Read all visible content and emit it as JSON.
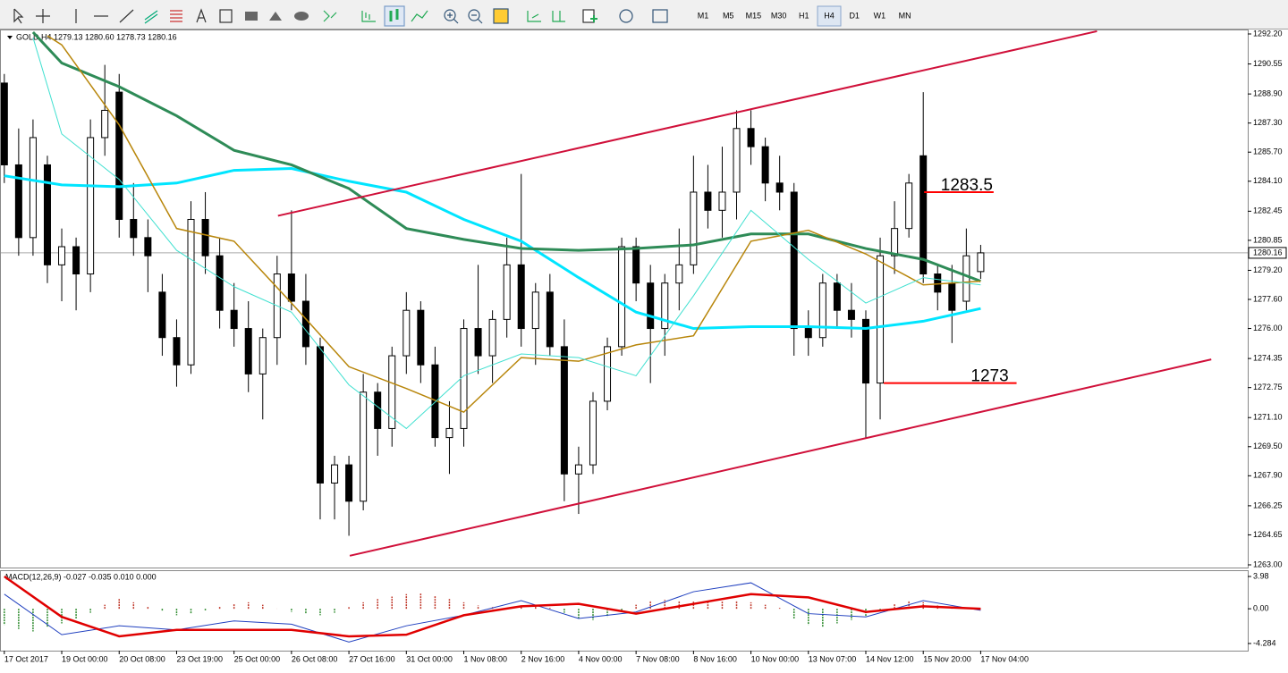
{
  "toolbar": {
    "timeframes": [
      "M1",
      "M5",
      "M15",
      "M30",
      "H1",
      "H4",
      "D1",
      "W1",
      "MN"
    ],
    "active": "H4"
  },
  "chart_data": [
    {
      "type": "candlestick",
      "title": "GOLD,H4  1279.13 1280.60 1278.73 1280.16",
      "categories": [
        "17 Oct 2017",
        null,
        null,
        null,
        "19 Oct 00:00",
        null,
        null,
        null,
        "20 Oct 08:00",
        null,
        null,
        null,
        "23 Oct 19:00",
        null,
        null,
        null,
        "25 Oct 00:00",
        null,
        null,
        null,
        "26 Oct 08:00",
        null,
        null,
        null,
        "27 Oct 16:00",
        null,
        null,
        null,
        "31 Oct 00:00",
        null,
        null,
        null,
        "1 Nov 08:00",
        null,
        null,
        null,
        "2 Nov 16:00",
        null,
        null,
        null,
        "4 Nov 00:00",
        null,
        null,
        null,
        "7 Nov 08:00",
        null,
        null,
        null,
        "8 Nov 16:00",
        null,
        null,
        null,
        "10 Nov 00:00",
        null,
        null,
        null,
        "13 Nov 07:00",
        null,
        null,
        null,
        "14 Nov 12:00",
        null,
        null,
        null,
        "15 Nov 20:00",
        null,
        null,
        null,
        "17 Nov 04:00"
      ],
      "open": [
        1289.5,
        1285,
        1281,
        1285,
        1279.5,
        1280.5,
        1279,
        1286.5,
        1289,
        1282,
        1281,
        1278,
        1275.5,
        1274,
        1282,
        1280,
        1277,
        1276,
        1273.5,
        1275.5,
        1279,
        1277.5,
        1275,
        1267.5,
        1268.5,
        1266.5,
        1272.5,
        1270.5,
        1274.5,
        1277,
        1274,
        1270,
        1270.5,
        1276,
        1274.5,
        1276.5,
        1279.5,
        1276,
        1278,
        1275,
        1268,
        1268.5,
        1272,
        1275,
        1280.5,
        1278.5,
        1276,
        1278.5,
        1279.5,
        1283.5,
        1282.5,
        1283.5,
        1287,
        1286,
        1284,
        1283.5,
        1276,
        1275.5,
        1278.5,
        1277,
        1276.5,
        1273,
        1280,
        1281.5,
        1285.5,
        1279,
        1278.5,
        1277.5,
        1279.13
      ],
      "high": [
        1290,
        1287,
        1287.5,
        1285.5,
        1281.5,
        1281,
        1287.5,
        1290.5,
        1290,
        1284,
        1282,
        1279,
        1276.5,
        1283,
        1283.5,
        1281,
        1278.5,
        1277.5,
        1276,
        1280,
        1282.5,
        1279,
        1275.5,
        1269,
        1269,
        1273.5,
        1273,
        1275,
        1278,
        1277.5,
        1275,
        1272,
        1276.5,
        1279.5,
        1277,
        1281,
        1284.5,
        1278.5,
        1279,
        1276.5,
        1269.5,
        1272.5,
        1275.5,
        1281,
        1281,
        1279.5,
        1279,
        1281.5,
        1285.5,
        1285,
        1286,
        1288,
        1288,
        1286.5,
        1285.5,
        1284,
        1277,
        1279,
        1279,
        1278.5,
        1277,
        1281,
        1283,
        1284.5,
        1289,
        1279.5,
        1279.5,
        1281.5,
        1280.6
      ],
      "low": [
        1284,
        1280,
        1280,
        1278.5,
        1277.5,
        1277,
        1278,
        1285.5,
        1281,
        1280,
        1278,
        1274.5,
        1272.8,
        1273.5,
        1279,
        1276,
        1275,
        1272.5,
        1271,
        1274,
        1277,
        1274,
        1265.5,
        1265.5,
        1264.6,
        1266,
        1269,
        1269.5,
        1273.5,
        1273,
        1269.5,
        1268,
        1269.5,
        1273.5,
        1273,
        1275.5,
        1275,
        1274,
        1274.5,
        1266.5,
        1265.8,
        1268,
        1271.5,
        1274.5,
        1277.5,
        1273,
        1274.5,
        1277,
        1279,
        1281.5,
        1281,
        1282,
        1285,
        1283,
        1282.5,
        1274.5,
        1274.5,
        1275,
        1276,
        1275.5,
        1270,
        1271,
        1279,
        1281,
        1278.5,
        1277,
        1275.2,
        1277,
        1278.73
      ],
      "close": [
        1285,
        1281,
        1286.5,
        1279.5,
        1280.5,
        1279,
        1286.5,
        1288,
        1282,
        1281,
        1280,
        1275.5,
        1274,
        1282,
        1280,
        1277,
        1276,
        1273.5,
        1275.5,
        1279,
        1277.5,
        1275,
        1267.5,
        1268.5,
        1266.5,
        1272.5,
        1270.5,
        1274.5,
        1277,
        1274,
        1270,
        1270.5,
        1276,
        1274.5,
        1276.5,
        1279.5,
        1276,
        1278,
        1275,
        1268,
        1268.5,
        1272,
        1275,
        1280.5,
        1278.5,
        1276,
        1278.5,
        1279.5,
        1283.5,
        1282.5,
        1283.5,
        1287,
        1286,
        1284,
        1283.5,
        1276,
        1275.5,
        1278.5,
        1277,
        1276.5,
        1273,
        1280,
        1281.5,
        1284,
        1279,
        1278,
        1277,
        1280,
        1280.16
      ],
      "up_color": "#ffffff",
      "down_color": "#000000",
      "wick_color": "#000000",
      "xlim": [
        -0.3,
        86.6
      ],
      "ylim": [
        1263.0,
        1292.2
      ],
      "yticks": [
        {
          "value": 1292.2,
          "label": "1292.20"
        },
        {
          "value": 1290.55,
          "label": "1290.55"
        },
        {
          "value": 1288.9,
          "label": "1288.90"
        },
        {
          "value": 1287.3,
          "label": "1287.30"
        },
        {
          "value": 1285.7,
          "label": "1285.70"
        },
        {
          "value": 1284.1,
          "label": "1284.10"
        },
        {
          "value": 1282.45,
          "label": "1282.45"
        },
        {
          "value": 1280.85,
          "label": "1280.85"
        },
        {
          "value": 1279.2,
          "label": "1279.20"
        },
        {
          "value": 1277.6,
          "label": "1277.60"
        },
        {
          "value": 1276.0,
          "label": "1276.00"
        },
        {
          "value": 1274.35,
          "label": "1274.35"
        },
        {
          "value": 1272.75,
          "label": "1272.75"
        },
        {
          "value": 1271.1,
          "label": "1271.10"
        },
        {
          "value": 1269.5,
          "label": "1269.50"
        },
        {
          "value": 1267.9,
          "label": "1267.90"
        },
        {
          "value": 1266.25,
          "label": "1266.25"
        },
        {
          "value": 1264.65,
          "label": "1264.65"
        },
        {
          "value": {
            "value": 1263.0,
            "label": "1263.00"
          },
          "label": "1263.00"
        }
      ],
      "current_price": 1280.16,
      "series": [
        {
          "color": "#00e5ff",
          "width": 3,
          "x": [
            0,
            4,
            8,
            12,
            16,
            20,
            24,
            28,
            32,
            36,
            40,
            44,
            48,
            52,
            56,
            60,
            64,
            68
          ],
          "values": [
            1284.4,
            1283.9,
            1283.8,
            1284.0,
            1284.7,
            1284.8,
            1284.1,
            1283.5,
            1282.0,
            1280.8,
            1278.8,
            1276.9,
            1276.0,
            1276.1,
            1276.1,
            1276.0,
            1276.4,
            1277.1
          ]
        },
        {
          "color": "#2e8b57",
          "width": 3,
          "x": [
            2,
            4,
            8,
            12,
            16,
            20,
            24,
            28,
            32,
            36,
            40,
            44,
            48,
            52,
            56,
            60,
            64,
            68
          ],
          "values": [
            1292.3,
            1290.6,
            1289.3,
            1287.7,
            1285.8,
            1285.0,
            1283.7,
            1281.5,
            1280.9,
            1280.4,
            1280.3,
            1280.4,
            1280.6,
            1281.2,
            1281.2,
            1280.4,
            1279.8,
            1278.6
          ]
        },
        {
          "color": "#b8860b",
          "width": 1.5,
          "x": [
            3,
            4,
            8,
            12,
            16,
            20,
            24,
            28,
            32,
            36,
            40,
            44,
            48,
            52,
            56,
            60,
            64,
            68
          ],
          "values": [
            1292.1,
            1291.6,
            1287.2,
            1281.5,
            1280.8,
            1277.4,
            1273.9,
            1272.7,
            1271.4,
            1274.4,
            1274.2,
            1275.1,
            1275.6,
            1280.8,
            1281.4,
            1280.1,
            1278.4,
            1278.6
          ]
        },
        {
          "color": "#40e0d0",
          "width": 1,
          "x": [
            2,
            4,
            8,
            12,
            16,
            20,
            24,
            28,
            32,
            36,
            40,
            44,
            48,
            52,
            56,
            60,
            64,
            68
          ],
          "values": [
            1292.0,
            1286.7,
            1284.2,
            1280.3,
            1278.3,
            1276.9,
            1272.9,
            1270.5,
            1273.4,
            1274.6,
            1274.4,
            1273.4,
            1277.8,
            1282.5,
            1279.8,
            1277.4,
            1278.8,
            1278.4
          ]
        }
      ],
      "trendlines": [
        {
          "color": "#d0103a",
          "x": [
            19.06,
            76.1
          ],
          "values": [
            1282.2,
            1292.35
          ]
        },
        {
          "color": "#d0103a",
          "x": [
            24.06,
            84.06
          ],
          "values": [
            1263.5,
            1274.3
          ]
        }
      ],
      "levels": [
        {
          "color": "#ff0000",
          "value": 1283.5,
          "x": [
            64.06,
            68.9
          ]
        },
        {
          "color": "#ff0000",
          "value": 1273,
          "x": [
            61.25,
            70.5
          ]
        }
      ]
    },
    {
      "type": "macd",
      "title": "MACD(12,26,9) -0.027 -0.035 0.010 0.000",
      "ylim": [
        -4.284,
        3.98
      ],
      "yticks": [
        3.98,
        {
          "value": 0,
          "label": "0.00"
        },
        -4.284
      ],
      "histogram": {
        "pos_color": "#c0392b",
        "neg_color": "#2e8b2e",
        "values": [
          -2,
          -2.5,
          -2.8,
          -2.2,
          -1.8,
          -1.2,
          -0.5,
          0.5,
          1.2,
          0.8,
          0.3,
          -0.3,
          -0.8,
          -0.6,
          -0.2,
          0.3,
          0.6,
          0.8,
          0.5,
          0,
          -0.4,
          -0.6,
          -0.8,
          -0.5,
          0.2,
          0.8,
          1.2,
          1.5,
          1.8,
          1.9,
          1.6,
          1.2,
          0.8,
          0.4,
          0.2,
          0.1,
          0.2,
          0.3,
          0.1,
          -0.5,
          -1.2,
          -1.4,
          -1,
          -0.3,
          0.5,
          1.0,
          1.1,
          1.0,
          0.9,
          0.8,
          0.9,
          1.0,
          0.8,
          0.5,
          0.1,
          -1.2,
          -2.0,
          -2.2,
          -1.8,
          -1.4,
          -1.0,
          -0.2,
          0.6,
          1.0,
          0.8,
          0.4,
          0.2,
          0.1,
          0.01
        ]
      },
      "series": [
        {
          "color": "#1f3fbf",
          "width": 1,
          "x": [
            0,
            4,
            8,
            12,
            16,
            20,
            24,
            28,
            32,
            36,
            40,
            44,
            48,
            52,
            56,
            60,
            64,
            68
          ],
          "values": [
            1.8,
            -3.2,
            -2.1,
            -2.6,
            -1.5,
            -1.9,
            -4.1,
            -2.1,
            -0.8,
            1.0,
            -1.2,
            -0.4,
            2.1,
            3.2,
            -0.6,
            -1.0,
            1.0,
            -0.2
          ]
        },
        {
          "color": "#e00000",
          "width": 2.5,
          "x": [
            0,
            4,
            8,
            12,
            16,
            20,
            24,
            28,
            32,
            36,
            40,
            44,
            48,
            52,
            56,
            60,
            64,
            68
          ],
          "values": [
            3.98,
            -1.0,
            -3.4,
            -2.6,
            -2.6,
            -2.6,
            -3.4,
            -3.2,
            -0.8,
            0.3,
            0.6,
            -0.6,
            0.6,
            1.8,
            1.4,
            -0.4,
            0.3,
            0
          ]
        }
      ]
    }
  ]
}
